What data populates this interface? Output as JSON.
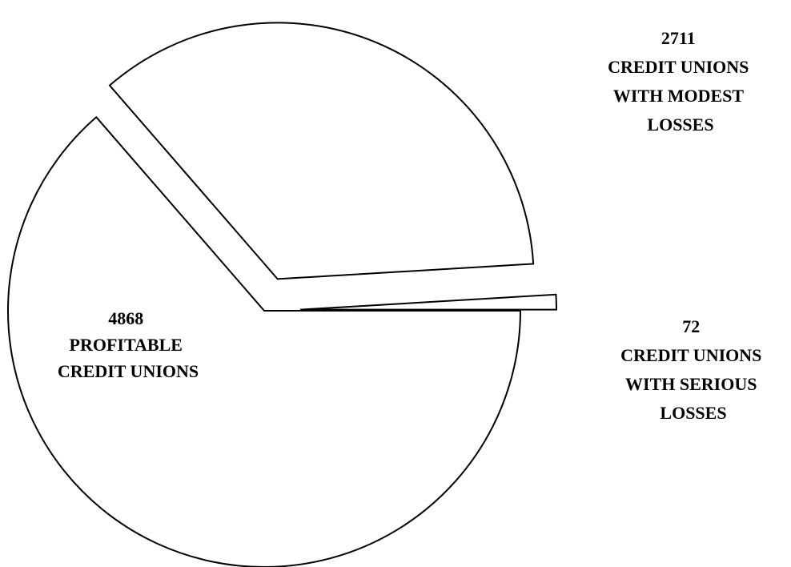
{
  "chart_data": {
    "type": "pie",
    "title": "",
    "slices": [
      {
        "value": 4868,
        "label_lines": [
          "4868",
          "PROFITABLE",
          "CREDIT UNIONS"
        ]
      },
      {
        "value": 2711,
        "label_lines": [
          "2711",
          "CREDIT UNIONS",
          "WITH MODEST",
          "LOSSES"
        ]
      },
      {
        "value": 72,
        "label_lines": [
          "72",
          "CREDIT UNIONS",
          "WITH SERIOUS",
          "LOSSES"
        ]
      }
    ],
    "colors": {
      "fill": "#ffffff",
      "stroke": "#000000"
    }
  }
}
